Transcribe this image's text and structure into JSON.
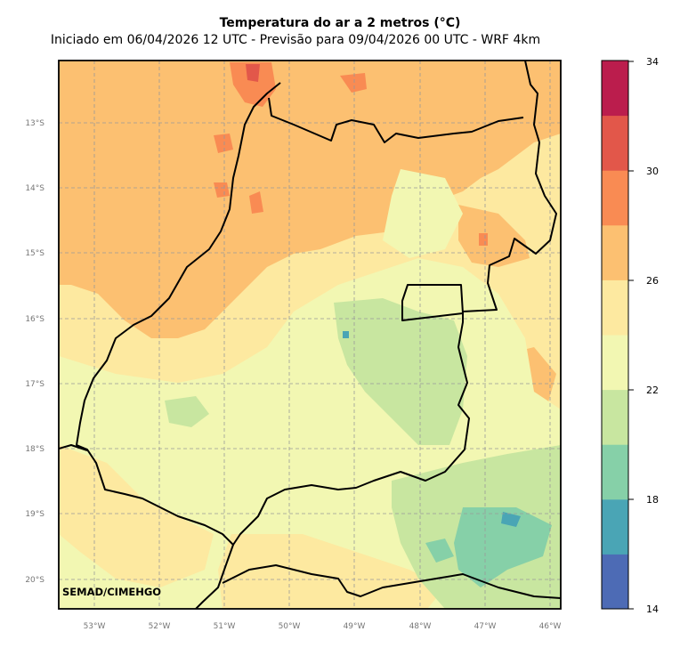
{
  "title": "Temperatura do ar a 2 metros (°C)",
  "subtitle": "Iniciado em 06/04/2026 12 UTC - Previsão para 09/04/2026 00 UTC - WRF 4km",
  "credit": "SEMAD/CIMEHGO",
  "lat_labels": [
    "13°S",
    "14°S",
    "15°S",
    "16°S",
    "17°S",
    "18°S",
    "19°S",
    "20°S"
  ],
  "lon_labels": [
    "53°W",
    "52°W",
    "51°W",
    "50°W",
    "49°W",
    "48°W",
    "47°W",
    "46°W"
  ],
  "colorbar": {
    "ticks": [
      "34",
      "30",
      "26",
      "22",
      "18",
      "14"
    ],
    "min": 14,
    "max": 34,
    "step": 2,
    "colors": [
      "#4d6bb5",
      "#4aa5b5",
      "#86d0a8",
      "#c8e6a0",
      "#f2f7b2",
      "#fde9a0",
      "#fcc071",
      "#f98b53",
      "#e2574a",
      "#bb1d4d"
    ]
  }
}
